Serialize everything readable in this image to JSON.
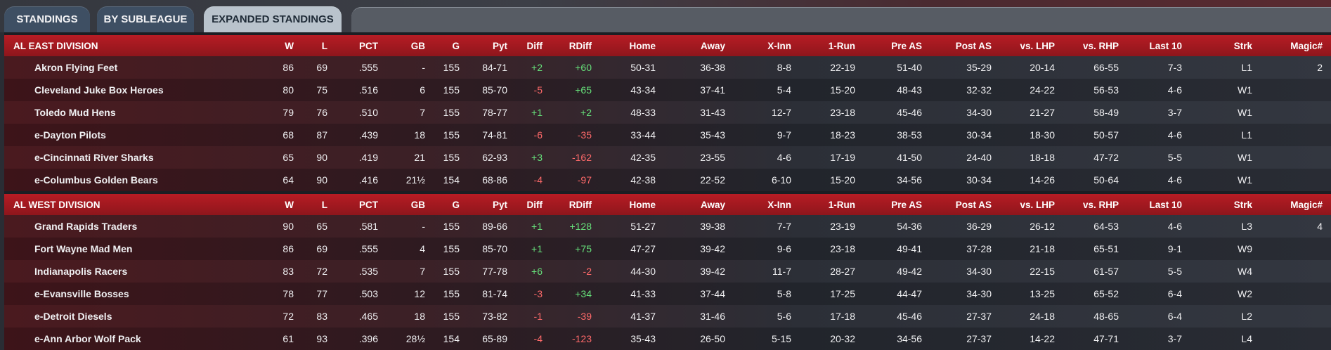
{
  "tabs": [
    {
      "label": "STANDINGS"
    },
    {
      "label": "BY SUBLEAGUE"
    },
    {
      "label": "EXPANDED STANDINGS"
    }
  ],
  "columns": [
    "W",
    "L",
    "PCT",
    "GB",
    "G",
    "Pyt",
    "Diff",
    "RDiff",
    "Home",
    "Away",
    "X-Inn",
    "1-Run",
    "Pre AS",
    "Post AS",
    "vs. LHP",
    "vs. RHP",
    "Last 10",
    "Strk",
    "Magic#"
  ],
  "divisions": [
    {
      "name": "AL EAST DIVISION",
      "rows": [
        {
          "team": "Akron  Flying Feet",
          "W": "86",
          "L": "69",
          "PCT": ".555",
          "GB": "-",
          "G": "155",
          "Pyt": "84-71",
          "Diff": "+2",
          "RDiff": "+60",
          "Home": "50-31",
          "Away": "36-38",
          "XInn": "8-8",
          "OneRun": "22-19",
          "PreAS": "51-40",
          "PostAS": "35-29",
          "vsLHP": "20-14",
          "vsRHP": "66-55",
          "Last10": "7-3",
          "Strk": "L1",
          "Magic": "2"
        },
        {
          "team": "Cleveland Juke Box Heroes",
          "W": "80",
          "L": "75",
          "PCT": ".516",
          "GB": "6",
          "G": "155",
          "Pyt": "85-70",
          "Diff": "-5",
          "RDiff": "+65",
          "Home": "43-34",
          "Away": "37-41",
          "XInn": "5-4",
          "OneRun": "15-20",
          "PreAS": "48-43",
          "PostAS": "32-32",
          "vsLHP": "24-22",
          "vsRHP": "56-53",
          "Last10": "4-6",
          "Strk": "W1",
          "Magic": ""
        },
        {
          "team": "Toledo  Mud Hens",
          "W": "79",
          "L": "76",
          "PCT": ".510",
          "GB": "7",
          "G": "155",
          "Pyt": "78-77",
          "Diff": "+1",
          "RDiff": "+2",
          "Home": "48-33",
          "Away": "31-43",
          "XInn": "12-7",
          "OneRun": "23-18",
          "PreAS": "45-46",
          "PostAS": "34-30",
          "vsLHP": "21-27",
          "vsRHP": "58-49",
          "Last10": "3-7",
          "Strk": "W1",
          "Magic": ""
        },
        {
          "team": "e-Dayton Pilots",
          "W": "68",
          "L": "87",
          "PCT": ".439",
          "GB": "18",
          "G": "155",
          "Pyt": "74-81",
          "Diff": "-6",
          "RDiff": "-35",
          "Home": "33-44",
          "Away": "35-43",
          "XInn": "9-7",
          "OneRun": "18-23",
          "PreAS": "38-53",
          "PostAS": "30-34",
          "vsLHP": "18-30",
          "vsRHP": "50-57",
          "Last10": "4-6",
          "Strk": "L1",
          "Magic": ""
        },
        {
          "team": "e-Cincinnati River Sharks",
          "W": "65",
          "L": "90",
          "PCT": ".419",
          "GB": "21",
          "G": "155",
          "Pyt": "62-93",
          "Diff": "+3",
          "RDiff": "-162",
          "Home": "42-35",
          "Away": "23-55",
          "XInn": "4-6",
          "OneRun": "17-19",
          "PreAS": "41-50",
          "PostAS": "24-40",
          "vsLHP": "18-18",
          "vsRHP": "47-72",
          "Last10": "5-5",
          "Strk": "W1",
          "Magic": ""
        },
        {
          "team": "e-Columbus Golden Bears",
          "W": "64",
          "L": "90",
          "PCT": ".416",
          "GB": "21½",
          "G": "154",
          "Pyt": "68-86",
          "Diff": "-4",
          "RDiff": "-97",
          "Home": "42-38",
          "Away": "22-52",
          "XInn": "6-10",
          "OneRun": "15-20",
          "PreAS": "34-56",
          "PostAS": "30-34",
          "vsLHP": "14-26",
          "vsRHP": "50-64",
          "Last10": "4-6",
          "Strk": "W1",
          "Magic": ""
        }
      ]
    },
    {
      "name": "AL WEST DIVISION",
      "rows": [
        {
          "team": "Grand Rapids Traders",
          "W": "90",
          "L": "65",
          "PCT": ".581",
          "GB": "-",
          "G": "155",
          "Pyt": "89-66",
          "Diff": "+1",
          "RDiff": "+128",
          "Home": "51-27",
          "Away": "39-38",
          "XInn": "7-7",
          "OneRun": "23-19",
          "PreAS": "54-36",
          "PostAS": "36-29",
          "vsLHP": "26-12",
          "vsRHP": "64-53",
          "Last10": "4-6",
          "Strk": "L3",
          "Magic": "4"
        },
        {
          "team": "Fort Wayne Mad Men",
          "W": "86",
          "L": "69",
          "PCT": ".555",
          "GB": "4",
          "G": "155",
          "Pyt": "85-70",
          "Diff": "+1",
          "RDiff": "+75",
          "Home": "47-27",
          "Away": "39-42",
          "XInn": "9-6",
          "OneRun": "23-18",
          "PreAS": "49-41",
          "PostAS": "37-28",
          "vsLHP": "21-18",
          "vsRHP": "65-51",
          "Last10": "9-1",
          "Strk": "W9",
          "Magic": ""
        },
        {
          "team": "Indianapolis Racers",
          "W": "83",
          "L": "72",
          "PCT": ".535",
          "GB": "7",
          "G": "155",
          "Pyt": "77-78",
          "Diff": "+6",
          "RDiff": "-2",
          "Home": "44-30",
          "Away": "39-42",
          "XInn": "11-7",
          "OneRun": "28-27",
          "PreAS": "49-42",
          "PostAS": "34-30",
          "vsLHP": "22-15",
          "vsRHP": "61-57",
          "Last10": "5-5",
          "Strk": "W4",
          "Magic": ""
        },
        {
          "team": "e-Evansville Bosses",
          "W": "78",
          "L": "77",
          "PCT": ".503",
          "GB": "12",
          "G": "155",
          "Pyt": "81-74",
          "Diff": "-3",
          "RDiff": "+34",
          "Home": "41-33",
          "Away": "37-44",
          "XInn": "5-8",
          "OneRun": "17-25",
          "PreAS": "44-47",
          "PostAS": "34-30",
          "vsLHP": "13-25",
          "vsRHP": "65-52",
          "Last10": "6-4",
          "Strk": "W2",
          "Magic": ""
        },
        {
          "team": "e-Detroit Diesels",
          "W": "72",
          "L": "83",
          "PCT": ".465",
          "GB": "18",
          "G": "155",
          "Pyt": "73-82",
          "Diff": "-1",
          "RDiff": "-39",
          "Home": "41-37",
          "Away": "31-46",
          "XInn": "5-6",
          "OneRun": "17-18",
          "PreAS": "45-46",
          "PostAS": "27-37",
          "vsLHP": "24-18",
          "vsRHP": "48-65",
          "Last10": "6-4",
          "Strk": "L2",
          "Magic": ""
        },
        {
          "team": "e-Ann Arbor Wolf Pack",
          "W": "61",
          "L": "93",
          "PCT": ".396",
          "GB": "28½",
          "G": "154",
          "Pyt": "65-89",
          "Diff": "-4",
          "RDiff": "-123",
          "Home": "35-43",
          "Away": "26-50",
          "XInn": "5-15",
          "OneRun": "20-32",
          "PreAS": "34-56",
          "PostAS": "27-37",
          "vsLHP": "14-22",
          "vsRHP": "47-71",
          "Last10": "3-7",
          "Strk": "L4",
          "Magic": ""
        }
      ]
    }
  ],
  "colors": {
    "positive": "#66e07a",
    "negative": "#ff6a6a",
    "header": "#b71c24",
    "active_tab": "#b9c3cc"
  }
}
